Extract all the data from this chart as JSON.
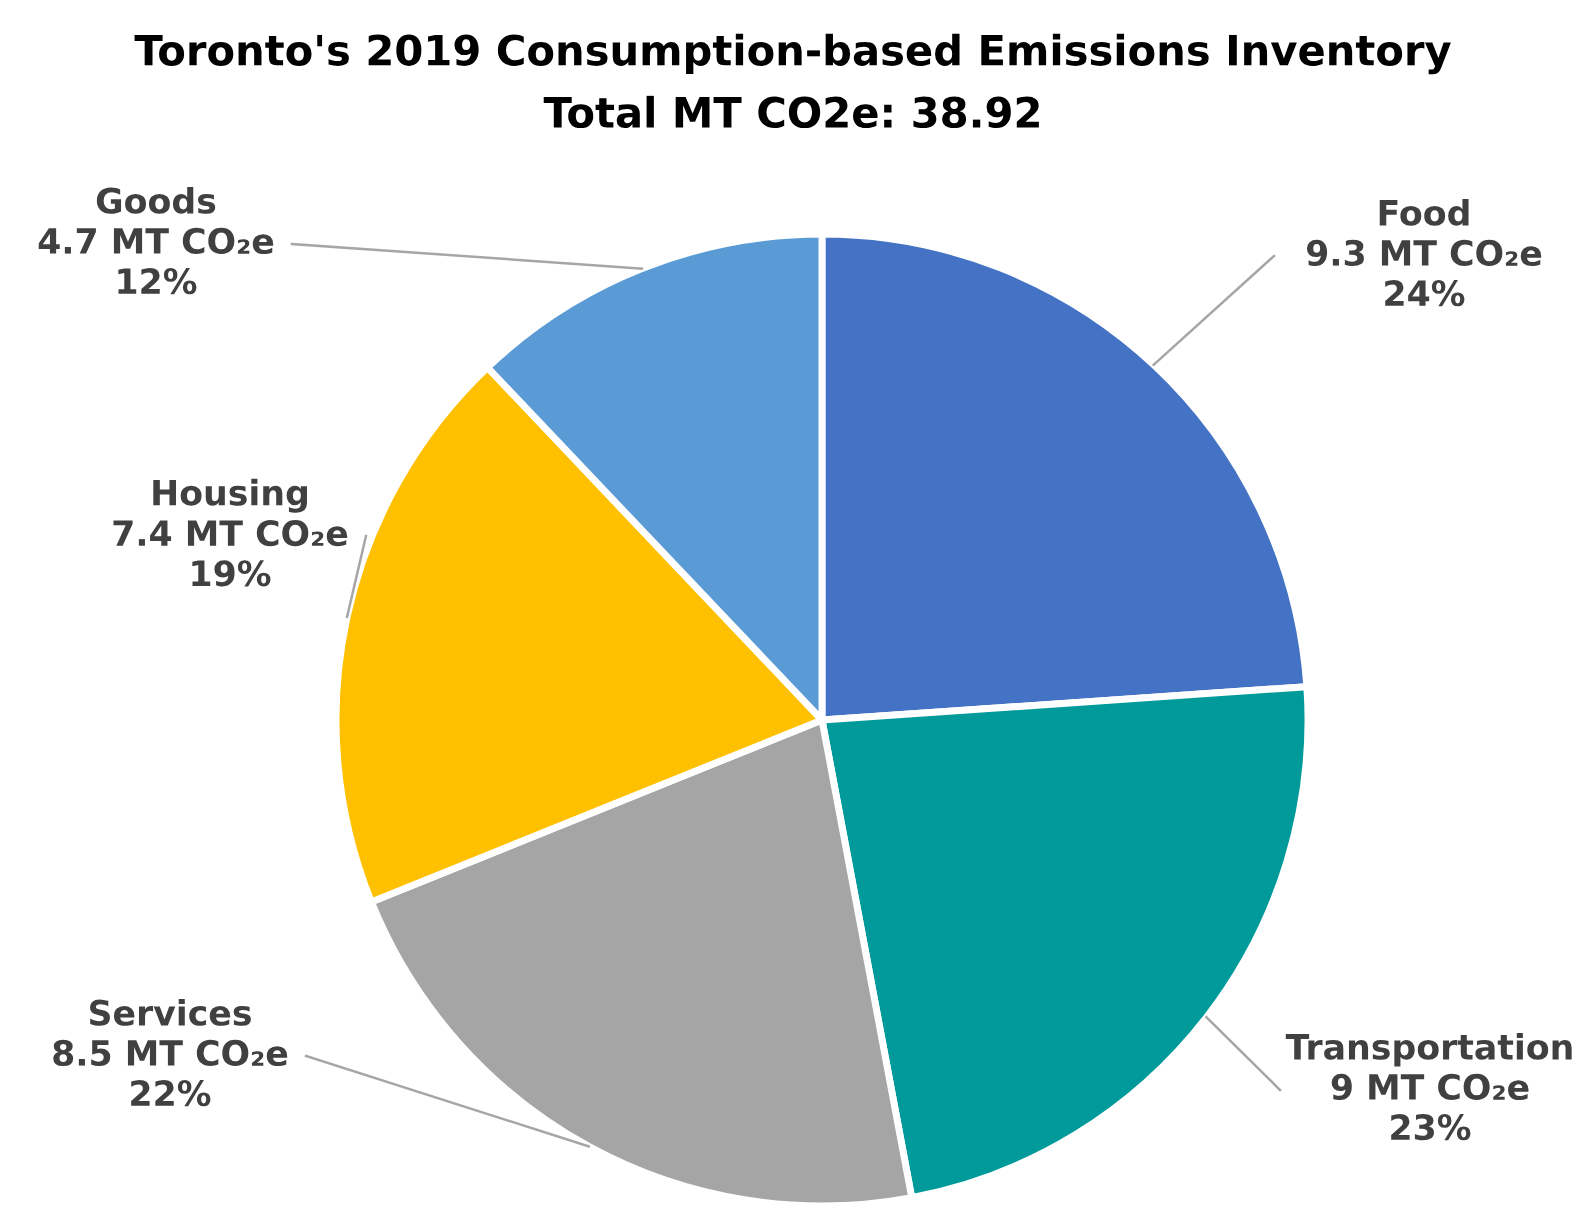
{
  "chart_data": {
    "type": "pie",
    "title": "Toronto's 2019 Consumption-based Emissions Inventory",
    "subtitle": "Total MT CO2e: 38.92",
    "categories": [
      "Food",
      "Transportation",
      "Services",
      "Housing",
      "Goods"
    ],
    "values": [
      9.3,
      9,
      8.5,
      7.4,
      4.7
    ],
    "value_labels": [
      "9.3 MT CO₂e\n24%",
      "9 MT CO₂e\n23%",
      "8.5 MT CO₂e\n22%",
      "7.4 MT CO₂e\n19%",
      "4.7 MT CO₂e\n12%"
    ],
    "colors": [
      "#4472c4",
      "#009a9a",
      "#a5a5a5",
      "#ffc000",
      "#5b9bd5"
    ],
    "legend": false
  }
}
